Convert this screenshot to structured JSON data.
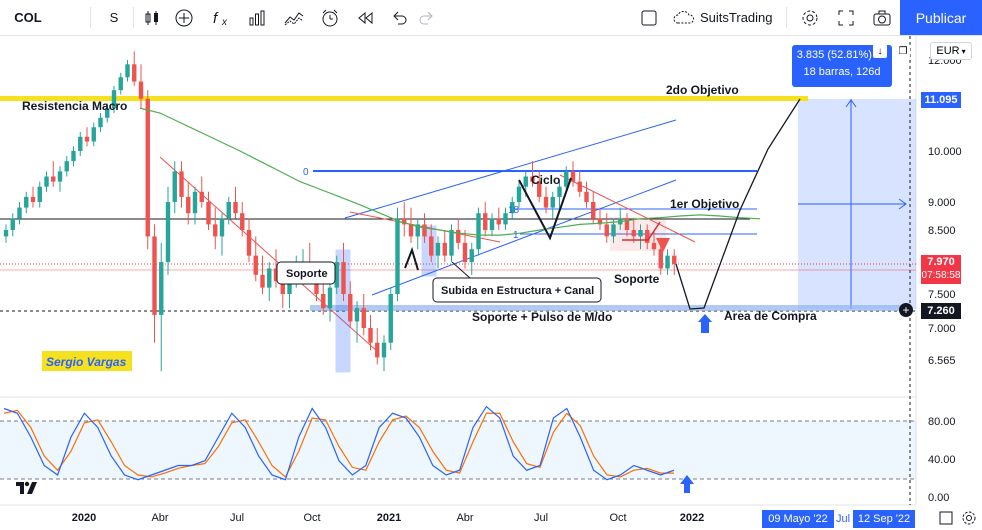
{
  "toolbar": {
    "symbol": "COL",
    "interval": "S",
    "layout_name": "SuitsTrading",
    "publish_label": "Publicar",
    "icons": [
      "candles-icon",
      "add-icon",
      "indicators-icon",
      "templates-icon",
      "compare-icon",
      "alert-icon",
      "replay-icon",
      "undo-icon",
      "redo-icon",
      "fullscreen-icon",
      "cloud-icon",
      "settings-icon",
      "expand-icon",
      "camera-icon"
    ]
  },
  "currency": "EUR",
  "colors": {
    "up_candle": "#26a69a",
    "down_candle": "#ef5350",
    "ma_line": "#4caf50",
    "yellow_line": "#f5e11e",
    "blue_accent": "#2962ff",
    "current_price": "#f23645",
    "stoch_k": "#2962ff",
    "stoch_d": "#ff6d00"
  },
  "chart_data": {
    "type": "candlestick",
    "symbol": "COL",
    "interval": "S",
    "y_axis": {
      "ticks": [
        "12.000",
        "10.000",
        "9.000",
        "8.500",
        "7.500",
        "7.000",
        "6.565"
      ],
      "range": [
        6.2,
        12.3
      ]
    },
    "x_axis": {
      "ticks": [
        "2020",
        "Abr",
        "Jul",
        "Oct",
        "2021",
        "Abr",
        "Jul",
        "Oct",
        "2022"
      ],
      "range_labels": [
        "09 Mayo '22",
        "Jul",
        "12 Sep '22"
      ]
    },
    "current_price": {
      "value": "7.970",
      "countdown": "07:58:58"
    },
    "price_tags": [
      {
        "value": "11.095",
        "color": "#2962ff"
      },
      {
        "value": "7.260",
        "color": "#131722"
      }
    ],
    "annotations": [
      "Resistencia Macro",
      "2do Objetivo",
      "1er Objetivo",
      "Ciclo",
      "Soporte",
      "Soporte",
      "Subida en Estructura + Canal",
      "Soporte + Pulso de M/do",
      "Area de Compra",
      "Sergio Vargas"
    ],
    "fib_labels": [
      "0",
      "18",
      "1"
    ],
    "projection_box": {
      "line1": "3.835 (52.81%) 38",
      "line2": "18 barras, 126d"
    },
    "candles": [
      [
        8.4,
        8.6,
        8.3,
        8.5
      ],
      [
        8.5,
        8.8,
        8.4,
        8.7
      ],
      [
        8.7,
        9.0,
        8.6,
        8.9
      ],
      [
        8.9,
        9.2,
        8.8,
        9.1
      ],
      [
        9.1,
        9.3,
        8.9,
        9.0
      ],
      [
        9.0,
        9.4,
        8.9,
        9.3
      ],
      [
        9.3,
        9.6,
        9.2,
        9.5
      ],
      [
        9.5,
        9.8,
        9.3,
        9.4
      ],
      [
        9.4,
        9.7,
        9.2,
        9.6
      ],
      [
        9.6,
        9.9,
        9.5,
        9.8
      ],
      [
        9.8,
        10.1,
        9.7,
        10.0
      ],
      [
        10.0,
        10.4,
        9.9,
        10.3
      ],
      [
        10.3,
        10.5,
        10.1,
        10.2
      ],
      [
        10.2,
        10.6,
        10.1,
        10.5
      ],
      [
        10.5,
        10.8,
        10.4,
        10.7
      ],
      [
        10.7,
        11.0,
        10.6,
        10.9
      ],
      [
        10.9,
        11.4,
        10.8,
        11.3
      ],
      [
        11.3,
        11.7,
        11.2,
        11.6
      ],
      [
        11.6,
        12.0,
        11.5,
        11.9
      ],
      [
        11.9,
        12.2,
        11.4,
        11.5
      ],
      [
        11.5,
        11.9,
        10.9,
        11.1
      ],
      [
        11.1,
        11.3,
        8.2,
        8.4
      ],
      [
        8.4,
        8.6,
        6.8,
        7.2
      ],
      [
        7.2,
        8.3,
        6.4,
        8.0
      ],
      [
        8.0,
        9.3,
        7.8,
        9.0
      ],
      [
        9.0,
        9.8,
        8.8,
        9.6
      ],
      [
        9.6,
        9.8,
        8.9,
        9.1
      ],
      [
        9.1,
        9.4,
        8.6,
        8.8
      ],
      [
        8.8,
        9.3,
        8.6,
        9.2
      ],
      [
        9.2,
        9.5,
        8.9,
        9.0
      ],
      [
        9.0,
        9.2,
        8.5,
        8.6
      ],
      [
        8.6,
        8.9,
        8.2,
        8.4
      ],
      [
        8.4,
        8.8,
        8.1,
        8.7
      ],
      [
        8.7,
        9.1,
        8.6,
        9.0
      ],
      [
        9.0,
        9.3,
        8.7,
        8.8
      ],
      [
        8.8,
        9.0,
        8.4,
        8.5
      ],
      [
        8.5,
        8.7,
        8.0,
        8.1
      ],
      [
        8.1,
        8.4,
        7.7,
        7.8
      ],
      [
        7.8,
        8.1,
        7.5,
        7.6
      ],
      [
        7.6,
        8.0,
        7.4,
        7.9
      ],
      [
        7.9,
        8.2,
        7.6,
        7.7
      ],
      [
        7.7,
        8.0,
        7.3,
        7.5
      ],
      [
        7.5,
        7.9,
        7.3,
        7.8
      ],
      [
        7.8,
        8.1,
        7.6,
        7.9
      ],
      [
        7.9,
        8.2,
        7.7,
        8.0
      ],
      [
        8.0,
        8.3,
        7.7,
        7.8
      ],
      [
        7.8,
        8.0,
        7.4,
        7.5
      ],
      [
        7.5,
        7.8,
        7.2,
        7.3
      ],
      [
        7.3,
        7.7,
        7.1,
        7.6
      ],
      [
        7.6,
        8.1,
        7.5,
        8.0
      ],
      [
        8.0,
        8.3,
        7.4,
        7.5
      ],
      [
        7.5,
        7.7,
        7.0,
        7.1
      ],
      [
        7.1,
        7.4,
        6.8,
        7.3
      ],
      [
        7.3,
        7.5,
        6.9,
        7.0
      ],
      [
        7.0,
        7.2,
        6.7,
        6.8
      ],
      [
        6.8,
        7.0,
        6.5,
        6.6
      ],
      [
        6.6,
        6.9,
        6.4,
        6.8
      ],
      [
        6.8,
        7.6,
        6.7,
        7.5
      ],
      [
        7.5,
        8.9,
        7.4,
        8.7
      ],
      [
        8.7,
        9.0,
        8.4,
        8.6
      ],
      [
        8.6,
        8.9,
        8.3,
        8.4
      ],
      [
        8.4,
        8.7,
        8.2,
        8.6
      ],
      [
        8.6,
        8.8,
        8.3,
        8.4
      ],
      [
        8.4,
        8.6,
        8.0,
        8.1
      ],
      [
        8.1,
        8.4,
        7.9,
        8.3
      ],
      [
        8.3,
        8.5,
        8.0,
        8.1
      ],
      [
        8.1,
        8.6,
        8.0,
        8.5
      ],
      [
        8.5,
        8.7,
        8.2,
        8.3
      ],
      [
        8.3,
        8.5,
        7.9,
        8.0
      ],
      [
        8.0,
        8.3,
        7.8,
        8.2
      ],
      [
        8.2,
        8.9,
        8.1,
        8.8
      ],
      [
        8.8,
        9.0,
        8.4,
        8.5
      ],
      [
        8.5,
        8.8,
        8.4,
        8.7
      ],
      [
        8.7,
        8.9,
        8.5,
        8.6
      ],
      [
        8.6,
        8.9,
        8.5,
        8.8
      ],
      [
        8.8,
        9.1,
        8.7,
        9.0
      ],
      [
        9.0,
        9.4,
        8.9,
        9.3
      ],
      [
        9.3,
        9.6,
        9.1,
        9.5
      ],
      [
        9.5,
        9.8,
        9.3,
        9.4
      ],
      [
        9.4,
        9.6,
        9.0,
        9.1
      ],
      [
        9.1,
        9.3,
        8.8,
        8.9
      ],
      [
        8.9,
        9.2,
        8.7,
        9.1
      ],
      [
        9.1,
        9.4,
        8.9,
        9.3
      ],
      [
        9.3,
        9.7,
        9.2,
        9.6
      ],
      [
        9.6,
        9.8,
        9.3,
        9.4
      ],
      [
        9.4,
        9.6,
        9.1,
        9.2
      ],
      [
        9.2,
        9.4,
        8.9,
        9.0
      ],
      [
        9.0,
        9.2,
        8.6,
        8.7
      ],
      [
        8.7,
        8.9,
        8.5,
        8.6
      ],
      [
        8.6,
        8.8,
        8.3,
        8.4
      ],
      [
        8.4,
        8.7,
        8.3,
        8.6
      ],
      [
        8.6,
        8.9,
        8.5,
        8.7
      ],
      [
        8.7,
        8.8,
        8.4,
        8.5
      ],
      [
        8.5,
        8.7,
        8.3,
        8.4
      ],
      [
        8.4,
        8.6,
        8.2,
        8.5
      ],
      [
        8.5,
        8.6,
        8.2,
        8.3
      ],
      [
        8.3,
        8.5,
        8.1,
        8.2
      ],
      [
        8.2,
        8.3,
        7.8,
        7.9
      ],
      [
        7.9,
        8.2,
        7.8,
        8.1
      ],
      [
        8.1,
        8.2,
        7.8,
        7.97
      ]
    ],
    "ma_line": [
      10.9,
      10.8,
      10.6,
      10.4,
      10.2,
      10.0,
      9.8,
      9.6,
      9.4,
      9.25,
      9.1,
      8.95,
      8.8,
      8.65,
      8.55,
      8.5,
      8.45,
      8.42,
      8.42,
      8.45,
      8.5,
      8.55,
      8.6,
      8.62,
      8.65,
      8.7,
      8.72,
      8.75,
      8.77,
      8.75,
      8.72,
      8.7
    ],
    "projection_path": [
      [
        7.97,
        0
      ],
      [
        7.3,
        2
      ],
      [
        8.7,
        4
      ],
      [
        8.4,
        5
      ],
      [
        10.0,
        7
      ],
      [
        11.1,
        9
      ]
    ],
    "stochastic": {
      "levels": [
        "80.00",
        "40.00",
        "0.00"
      ],
      "k": [
        90,
        85,
        60,
        30,
        20,
        60,
        85,
        70,
        40,
        20,
        15,
        20,
        25,
        30,
        30,
        35,
        60,
        85,
        70,
        40,
        20,
        15,
        60,
        90,
        70,
        35,
        20,
        30,
        70,
        85,
        80,
        60,
        30,
        20,
        25,
        70,
        92,
        80,
        40,
        25,
        30,
        80,
        90,
        60,
        25,
        15,
        20,
        30,
        25,
        20,
        25
      ],
      "d": [
        85,
        88,
        70,
        40,
        25,
        45,
        75,
        78,
        55,
        30,
        20,
        18,
        22,
        27,
        30,
        32,
        50,
        75,
        78,
        55,
        30,
        18,
        45,
        80,
        78,
        50,
        28,
        25,
        55,
        78,
        82,
        70,
        45,
        25,
        22,
        55,
        85,
        85,
        55,
        32,
        28,
        65,
        85,
        72,
        40,
        20,
        18,
        25,
        27,
        22,
        22
      ]
    }
  }
}
